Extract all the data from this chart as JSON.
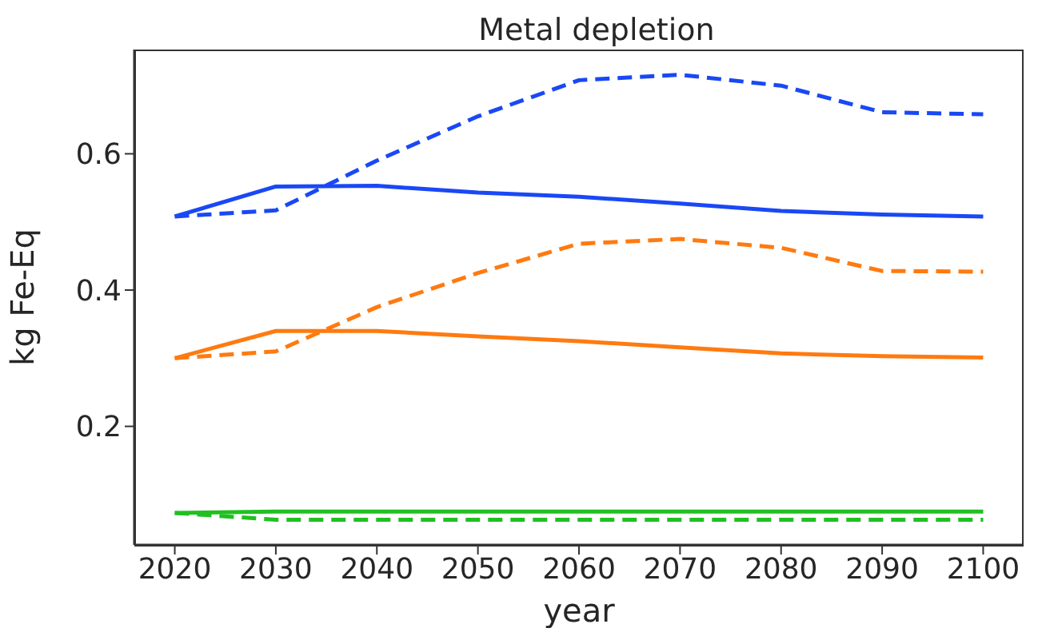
{
  "chart_data": {
    "type": "line",
    "title": "Metal depletion",
    "xlabel": "year",
    "ylabel": "kg Fe-Eq",
    "x": [
      2020,
      2030,
      2040,
      2050,
      2060,
      2070,
      2080,
      2090,
      2100
    ],
    "xlim": [
      2016,
      2104
    ],
    "xticks": [
      2020,
      2030,
      2040,
      2050,
      2060,
      2070,
      2080,
      2090,
      2100
    ],
    "ylim": [
      0.026,
      0.753
    ],
    "yticks": [
      0.2,
      0.4,
      0.6
    ],
    "grid": false,
    "legend": false,
    "marker": "none",
    "series": [
      {
        "color": "#1a48f5",
        "line_style": "solid",
        "values": [
          0.508,
          0.552,
          0.553,
          0.543,
          0.537,
          0.527,
          0.516,
          0.511,
          0.508
        ]
      },
      {
        "color": "#1a48f5",
        "line_style": "dashed",
        "values": [
          0.508,
          0.517,
          0.59,
          0.655,
          0.708,
          0.716,
          0.7,
          0.661,
          0.658
        ]
      },
      {
        "color": "#ff7a10",
        "line_style": "solid",
        "values": [
          0.3,
          0.34,
          0.34,
          0.332,
          0.325,
          0.316,
          0.307,
          0.303,
          0.301
        ]
      },
      {
        "color": "#ff7a10",
        "line_style": "dashed",
        "values": [
          0.3,
          0.31,
          0.375,
          0.425,
          0.468,
          0.475,
          0.462,
          0.428,
          0.427
        ]
      },
      {
        "color": "#20c020",
        "line_style": "solid",
        "values": [
          0.073,
          0.075,
          0.075,
          0.075,
          0.075,
          0.075,
          0.075,
          0.075,
          0.075
        ]
      },
      {
        "color": "#20c020",
        "line_style": "dashed",
        "values": [
          0.073,
          0.063,
          0.063,
          0.063,
          0.063,
          0.063,
          0.063,
          0.063,
          0.063
        ]
      }
    ]
  }
}
